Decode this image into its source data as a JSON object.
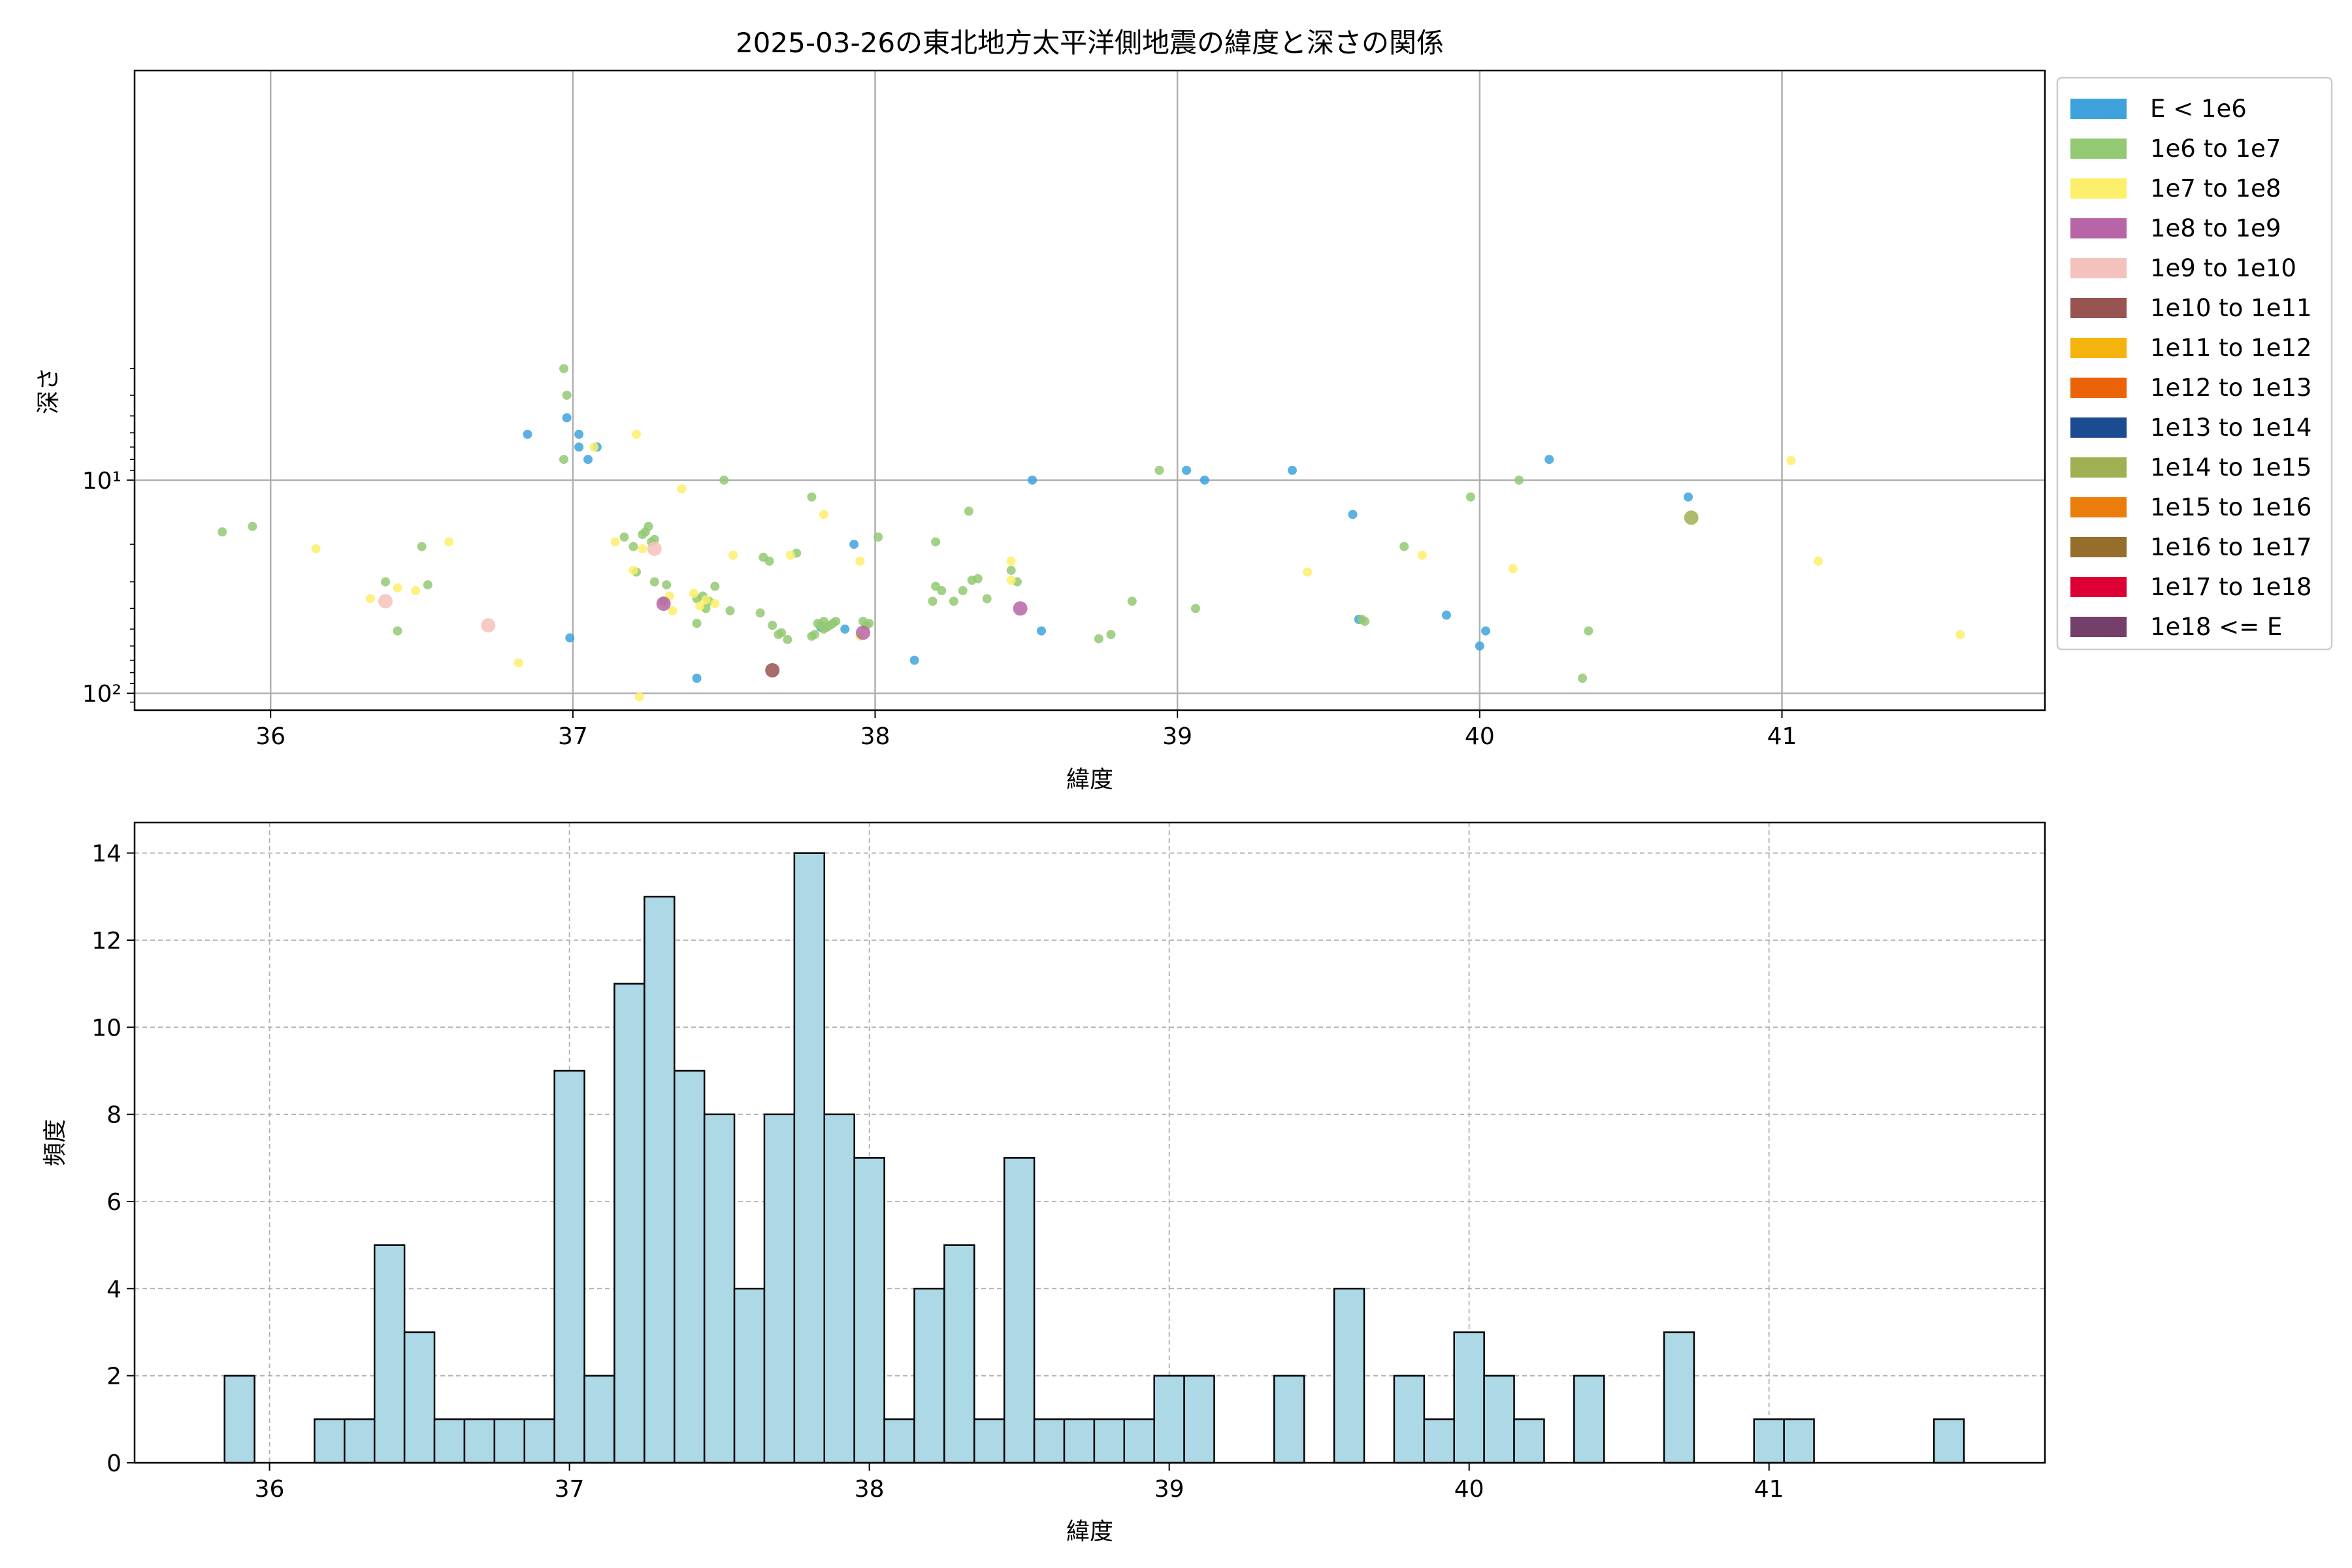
{
  "figure": {
    "background": "#ffffff"
  },
  "chart_data": [
    {
      "type": "scatter",
      "title": "2025-03-26の東北地方太平洋側地震の緯度と深さの関係",
      "xlabel": "緯度",
      "ylabel": "深さ",
      "xlim": [
        35.55,
        41.87
      ],
      "ylim": [
        120,
        0.12
      ],
      "yscale": "log",
      "y_inverted": true,
      "grid": true,
      "x_ticks": [
        36,
        37,
        38,
        39,
        40,
        41
      ],
      "x_tick_labels": [
        "36",
        "37",
        "38",
        "39",
        "40",
        "41"
      ],
      "y_ticks": [
        10,
        100
      ],
      "y_tick_labels": [
        "10¹",
        "10²"
      ],
      "legend": {
        "placement": "outside-right-top",
        "entries": [
          {
            "label": "E < 1e6",
            "color": "#3ea3dc"
          },
          {
            "label": "1e6 to 1e7",
            "color": "#93c973"
          },
          {
            "label": "1e7 to 1e8",
            "color": "#fdee6b"
          },
          {
            "label": "1e8 to 1e9",
            "color": "#b765a6"
          },
          {
            "label": "1e9 to 1e10",
            "color": "#f4c2bc"
          },
          {
            "label": "1e10 to 1e11",
            "color": "#985450"
          },
          {
            "label": "1e11 to 1e12",
            "color": "#f5b40d"
          },
          {
            "label": "1e12 to 1e13",
            "color": "#ec6208"
          },
          {
            "label": "1e13 to 1e14",
            "color": "#1b4b90"
          },
          {
            "label": "1e14 to 1e15",
            "color": "#9eb052"
          },
          {
            "label": "1e15 to 1e16",
            "color": "#ea7d0c"
          },
          {
            "label": "1e16 to 1e17",
            "color": "#966e2b"
          },
          {
            "label": "1e17 to 1e18",
            "color": "#dc0035"
          },
          {
            "label": "1e18 <= E",
            "color": "#743f6a"
          }
        ]
      },
      "series": [
        {
          "name": "E < 1e6",
          "color": "#3ea3dc",
          "points": [
            [
              36.85,
              6.1
            ],
            [
              36.98,
              5.1
            ],
            [
              37.02,
              6.1
            ],
            [
              37.02,
              7.0
            ],
            [
              37.05,
              8.0
            ],
            [
              37.08,
              7.0
            ],
            [
              36.99,
              55
            ],
            [
              37.93,
              20
            ],
            [
              37.9,
              50
            ],
            [
              37.82,
              49
            ],
            [
              37.41,
              85
            ],
            [
              38.13,
              70
            ],
            [
              38.52,
              10
            ],
            [
              38.55,
              51
            ],
            [
              39.03,
              9.0
            ],
            [
              39.09,
              10
            ],
            [
              39.38,
              9.0
            ],
            [
              39.58,
              14.5
            ],
            [
              39.6,
              45
            ],
            [
              39.89,
              43
            ],
            [
              40.0,
              60
            ],
            [
              40.02,
              51
            ],
            [
              40.23,
              8.0
            ],
            [
              40.69,
              12
            ]
          ]
        },
        {
          "name": "1e6 to 1e7",
          "color": "#93c973",
          "points": [
            [
              36.97,
              3.0
            ],
            [
              36.98,
              4.0
            ],
            [
              36.97,
              8.0
            ],
            [
              35.84,
              17.5
            ],
            [
              35.94,
              16.5
            ],
            [
              36.38,
              30
            ],
            [
              36.42,
              51
            ],
            [
              36.5,
              20.5
            ],
            [
              36.52,
              31
            ],
            [
              37.17,
              18.5
            ],
            [
              37.2,
              20.5
            ],
            [
              37.23,
              18
            ],
            [
              37.24,
              17.5
            ],
            [
              37.25,
              16.5
            ],
            [
              37.26,
              19.5
            ],
            [
              37.27,
              19
            ],
            [
              37.21,
              27
            ],
            [
              37.27,
              30
            ],
            [
              37.31,
              31
            ],
            [
              37.3,
              37
            ],
            [
              37.41,
              36
            ],
            [
              37.41,
              47
            ],
            [
              37.43,
              35
            ],
            [
              37.45,
              37
            ],
            [
              37.47,
              31.5
            ],
            [
              37.44,
              40
            ],
            [
              37.52,
              41
            ],
            [
              37.5,
              10
            ],
            [
              37.63,
              23
            ],
            [
              37.65,
              24
            ],
            [
              37.62,
              42
            ],
            [
              37.66,
              48
            ],
            [
              37.68,
              53
            ],
            [
              37.69,
              52
            ],
            [
              37.71,
              56
            ],
            [
              37.74,
              22
            ],
            [
              37.79,
              12
            ],
            [
              37.79,
              54
            ],
            [
              37.8,
              53
            ],
            [
              37.81,
              47
            ],
            [
              37.82,
              48
            ],
            [
              37.83,
              46
            ],
            [
              37.83,
              50
            ],
            [
              37.84,
              49
            ],
            [
              37.85,
              48
            ],
            [
              37.86,
              47
            ],
            [
              37.87,
              46
            ],
            [
              37.96,
              46
            ],
            [
              37.97,
              48
            ],
            [
              37.98,
              47
            ],
            [
              38.01,
              18.5
            ],
            [
              38.19,
              37
            ],
            [
              38.2,
              19.5
            ],
            [
              38.2,
              31.5
            ],
            [
              38.22,
              33
            ],
            [
              38.26,
              37
            ],
            [
              38.29,
              33
            ],
            [
              38.31,
              14
            ],
            [
              38.32,
              29.5
            ],
            [
              38.34,
              29
            ],
            [
              38.37,
              36
            ],
            [
              38.45,
              26.5
            ],
            [
              38.47,
              30
            ],
            [
              38.85,
              37
            ],
            [
              38.74,
              55.5
            ],
            [
              38.78,
              53
            ],
            [
              38.94,
              9.0
            ],
            [
              39.06,
              40
            ],
            [
              39.61,
              45
            ],
            [
              39.62,
              46
            ],
            [
              39.75,
              20.5
            ],
            [
              39.97,
              12
            ],
            [
              40.13,
              10
            ],
            [
              40.34,
              85
            ],
            [
              40.36,
              51
            ]
          ]
        },
        {
          "name": "1e7 to 1e8",
          "color": "#fdee6b",
          "points": [
            [
              37.21,
              6.1
            ],
            [
              37.07,
              7.0
            ],
            [
              37.36,
              11
            ],
            [
              37.83,
              14.5
            ],
            [
              36.15,
              21
            ],
            [
              36.33,
              36
            ],
            [
              36.42,
              32
            ],
            [
              36.48,
              33
            ],
            [
              36.59,
              19.5
            ],
            [
              37.14,
              19.5
            ],
            [
              37.2,
              26.5
            ],
            [
              37.23,
              21
            ],
            [
              37.32,
              35
            ],
            [
              37.33,
              41
            ],
            [
              37.4,
              34
            ],
            [
              37.42,
              39
            ],
            [
              37.44,
              36.5
            ],
            [
              37.47,
              38
            ],
            [
              37.53,
              22.5
            ],
            [
              37.72,
              22.5
            ],
            [
              37.95,
              24
            ],
            [
              37.95,
              54
            ],
            [
              38.45,
              24
            ],
            [
              38.45,
              29.5
            ],
            [
              39.43,
              27
            ],
            [
              39.81,
              22.5
            ],
            [
              40.11,
              26
            ],
            [
              41.03,
              8.1
            ],
            [
              41.12,
              24
            ],
            [
              41.59,
              53
            ],
            [
              36.82,
              72
            ],
            [
              37.22,
              104
            ]
          ]
        },
        {
          "name": "1e8 to 1e9",
          "color": "#b765a6",
          "points": [
            [
              37.3,
              38
            ],
            [
              37.96,
              52
            ],
            [
              38.48,
              40
            ]
          ]
        },
        {
          "name": "1e9 to 1e10",
          "color": "#f4c2bc",
          "points": [
            [
              36.72,
              48
            ],
            [
              37.27,
              21
            ],
            [
              36.38,
              37
            ]
          ]
        },
        {
          "name": "1e10 to 1e11",
          "color": "#985450",
          "points": [
            [
              37.66,
              78
            ]
          ]
        },
        {
          "name": "1e14 to 1e15",
          "color": "#9eb052",
          "points": [
            [
              40.7,
              15
            ]
          ]
        }
      ]
    },
    {
      "type": "bar",
      "subtype": "histogram",
      "title": "",
      "xlabel": "緯度",
      "ylabel": "頻度",
      "xlim": [
        35.55,
        41.92
      ],
      "ylim": [
        0,
        14.7
      ],
      "grid": true,
      "bar_color": "#add8e6",
      "edge_color": "#000000",
      "x_ticks": [
        36,
        37,
        38,
        39,
        40,
        41
      ],
      "x_tick_labels": [
        "36",
        "37",
        "38",
        "39",
        "40",
        "41"
      ],
      "y_ticks": [
        0,
        2,
        4,
        6,
        8,
        10,
        12,
        14
      ],
      "y_tick_labels": [
        "0",
        "2",
        "4",
        "6",
        "8",
        "10",
        "12",
        "14"
      ],
      "bin_edges": [
        35.85,
        41.65
      ],
      "bin_width": 0.1,
      "values": [
        2,
        0,
        0,
        1,
        1,
        5,
        3,
        1,
        1,
        1,
        1,
        9,
        2,
        11,
        13,
        9,
        8,
        4,
        8,
        14,
        8,
        7,
        1,
        4,
        5,
        1,
        7,
        1,
        1,
        1,
        1,
        2,
        2,
        0,
        0,
        2,
        0,
        4,
        0,
        2,
        1,
        3,
        2,
        1,
        0,
        2,
        0,
        0,
        3,
        0,
        0,
        1,
        1,
        0,
        0,
        0,
        0,
        1
      ]
    }
  ]
}
